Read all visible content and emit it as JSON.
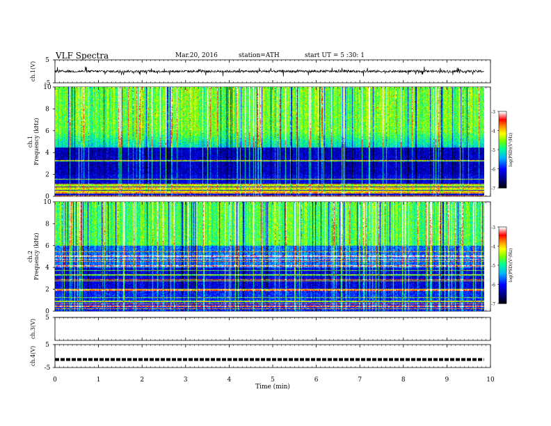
{
  "header": {
    "title": "VLF  Spectra",
    "date": "Mar.20, 2016",
    "station": "station=ATH",
    "start": "start  UT  =    5  :30: 1"
  },
  "chart_data": [
    {
      "type": "line",
      "name": "ch1-waveform",
      "ylabel": "ch.1(V)",
      "ylim": [
        -5,
        5
      ],
      "y_ticks": [
        "5",
        "-5"
      ],
      "xlim": [
        0,
        10
      ],
      "signal": {
        "mean": 0,
        "noise_amplitude": 0.5,
        "spikes_amplitude": 2.0,
        "end_min": 9.85
      }
    },
    {
      "type": "heatmap",
      "name": "ch1-spectrogram",
      "ylabel": "ch.1\nFrequency (kHz)",
      "ylim": [
        0,
        10
      ],
      "y_ticks": [
        "10",
        "8",
        "6",
        "4",
        "2",
        "0"
      ],
      "xlim": [
        0,
        9.85
      ],
      "colorbar": {
        "label": "log(PSD)(V²/Hz)",
        "range": [
          -7,
          -3
        ],
        "ticks": [
          "-3",
          "-4",
          "-5",
          "-6",
          "-7"
        ]
      }
    },
    {
      "type": "heatmap",
      "name": "ch2-spectrogram",
      "ylabel": "ch.2\nFrequency (kHz)",
      "ylim": [
        0,
        10
      ],
      "y_ticks": [
        "10",
        "8",
        "6",
        "4",
        "2",
        "0"
      ],
      "xlim": [
        0,
        9.85
      ],
      "colorbar": {
        "label": "log(PSD)(V²/Hz)",
        "range": [
          -7,
          -3
        ],
        "ticks": [
          "-3",
          "-4",
          "-5",
          "-6",
          "-7"
        ]
      }
    },
    {
      "type": "line",
      "name": "ch3-waveform",
      "ylabel": "ch.3(V)",
      "ylim": [
        -5,
        5
      ],
      "y_ticks": [
        "5"
      ],
      "xlim": [
        0,
        10
      ],
      "signal": {
        "mean": 5,
        "noise_amplitude": 0.05,
        "end_min": 9.85
      }
    },
    {
      "type": "line",
      "name": "ch4-waveform",
      "ylabel": "ch.4(V)",
      "ylim": [
        -5,
        5
      ],
      "y_ticks": [
        "5",
        "-5"
      ],
      "xlim": [
        0,
        10
      ],
      "signal": {
        "mean": -1.5,
        "noise_amplitude": 0.35,
        "end_min": 9.85
      }
    }
  ],
  "x_axis": {
    "label": "Time  (min)",
    "range": [
      0,
      10
    ],
    "ticks": [
      "0",
      "1",
      "2",
      "3",
      "4",
      "5",
      "6",
      "7",
      "8",
      "9",
      "10"
    ]
  },
  "colors": {
    "waveform": "#000000",
    "colormap": [
      "#000080",
      "#0000ff",
      "#00c8ff",
      "#00ff80",
      "#ffff00",
      "#ff8000",
      "#ff0000",
      "#ffffff"
    ]
  }
}
